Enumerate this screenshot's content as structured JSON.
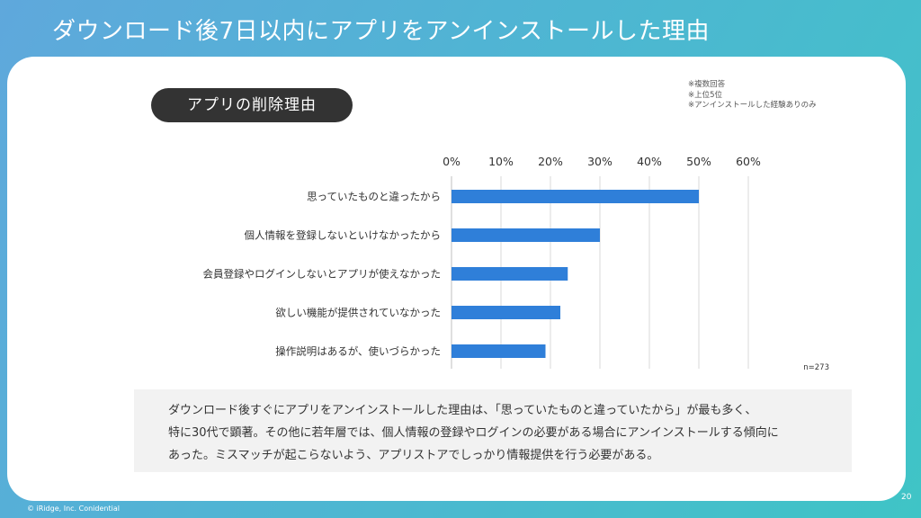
{
  "slide": {
    "title": "ダウンロード後7日以内にアプリをアンインストールした理由",
    "section_label": "アプリの削除理由",
    "notes": [
      "※複数回答",
      "※上位5位",
      "※アンインストールした経験ありのみ"
    ],
    "summary_lines": [
      "ダウンロード後すぐにアプリをアンインストールした理由は、「思っていたものと違っていたから」が最も多く、",
      "特に30代で顕著。その他に若年層では、個人情報の登録やログインの必要がある場合にアンインストールする傾向に",
      "あった。ミスマッチが起こらないよう、アプリストアでしっかり情報提供を行う必要がある。"
    ],
    "footer": {
      "copyright": "© iRidge, Inc. Conidential",
      "page_number": "20"
    }
  },
  "chart_data": {
    "type": "bar",
    "orientation": "horizontal",
    "categories": [
      "思っていたものと違ったから",
      "個人情報を登録しないといけなかったから",
      "会員登録やログインしないとアプリが使えなかった",
      "欲しい機能が提供されていなかった",
      "操作説明はあるが、使いづらかった"
    ],
    "values": [
      50,
      30,
      23.5,
      22,
      19
    ],
    "xlim": [
      0,
      60
    ],
    "x_ticks": [
      "0%",
      "10%",
      "20%",
      "30%",
      "40%",
      "50%",
      "60%"
    ],
    "x_axis_position": "top",
    "grid": true,
    "sample_size": "n=273",
    "colors": {
      "bar": "#2f7fd9",
      "grid": "#d9d9d9"
    }
  }
}
